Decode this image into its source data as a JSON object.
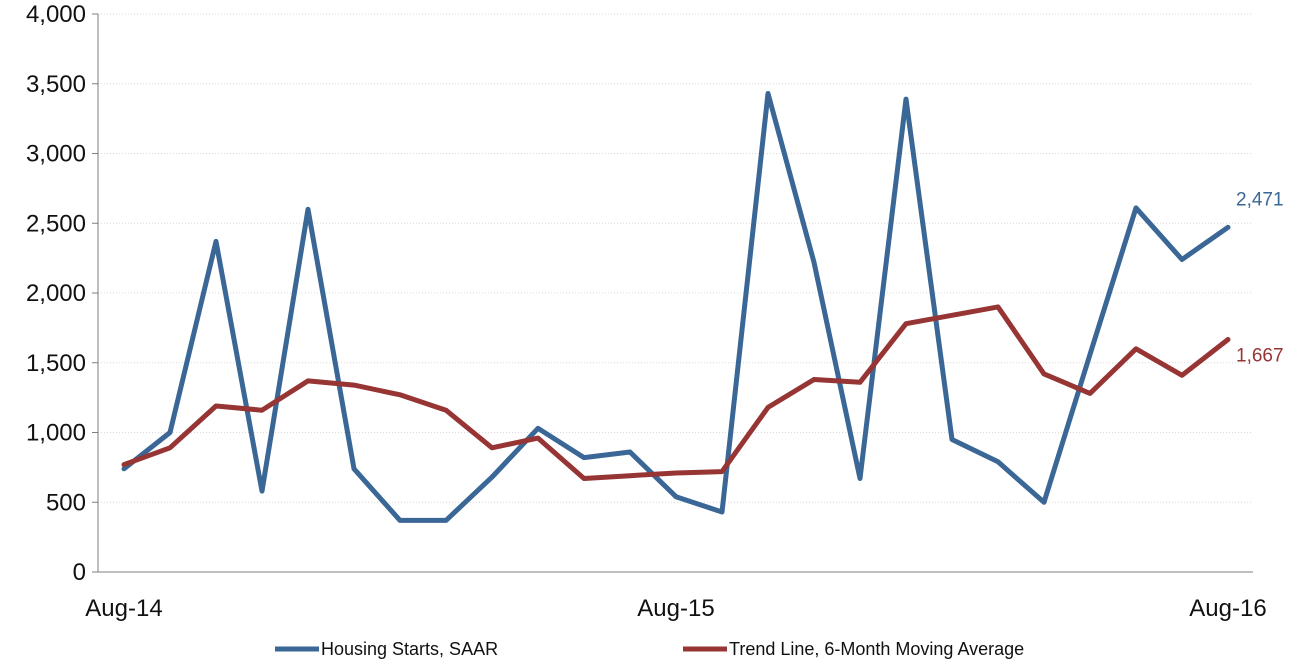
{
  "chart_data": {
    "type": "line",
    "title": "",
    "xlabel": "",
    "ylabel": "",
    "ylim": [
      0,
      4000
    ],
    "yticks": [
      0,
      500,
      1000,
      1500,
      2000,
      2500,
      3000,
      3500,
      4000
    ],
    "ytick_labels": [
      "0",
      "500",
      "1,000",
      "1,500",
      "2,000",
      "2,500",
      "3,000",
      "3,500",
      "4,000"
    ],
    "x_tick_labels": [
      {
        "index": 0,
        "label": "Aug-14"
      },
      {
        "index": 12,
        "label": "Aug-15"
      },
      {
        "index": 24,
        "label": "Aug-16"
      }
    ],
    "x": [
      "Aug-14",
      "Sep-14",
      "Oct-14",
      "Nov-14",
      "Dec-14",
      "Jan-15",
      "Feb-15",
      "Mar-15",
      "Apr-15",
      "May-15",
      "Jun-15",
      "Jul-15",
      "Aug-15",
      "Sep-15",
      "Oct-15",
      "Nov-15",
      "Dec-15",
      "Jan-16",
      "Feb-16",
      "Mar-16",
      "Apr-16",
      "May-16",
      "Jun-16",
      "Jul-16",
      "Aug-16"
    ],
    "grid": true,
    "legend_position": "bottom",
    "series": [
      {
        "name": "Housing Starts, SAAR",
        "color": "#3a6796",
        "values": [
          740,
          1000,
          2370,
          580,
          2600,
          740,
          370,
          370,
          680,
          1030,
          820,
          860,
          540,
          430,
          3430,
          2220,
          670,
          3390,
          950,
          790,
          500,
          1560,
          2610,
          2240,
          2471
        ],
        "end_label": "2,471"
      },
      {
        "name": "Trend Line, 6-Month Moving Average",
        "color": "#973434",
        "values": [
          770,
          890,
          1190,
          1160,
          1370,
          1340,
          1270,
          1160,
          890,
          960,
          670,
          690,
          710,
          720,
          1180,
          1380,
          1360,
          1780,
          1840,
          1900,
          1420,
          1280,
          1600,
          1410,
          1667
        ],
        "end_label": "1,667"
      }
    ]
  }
}
